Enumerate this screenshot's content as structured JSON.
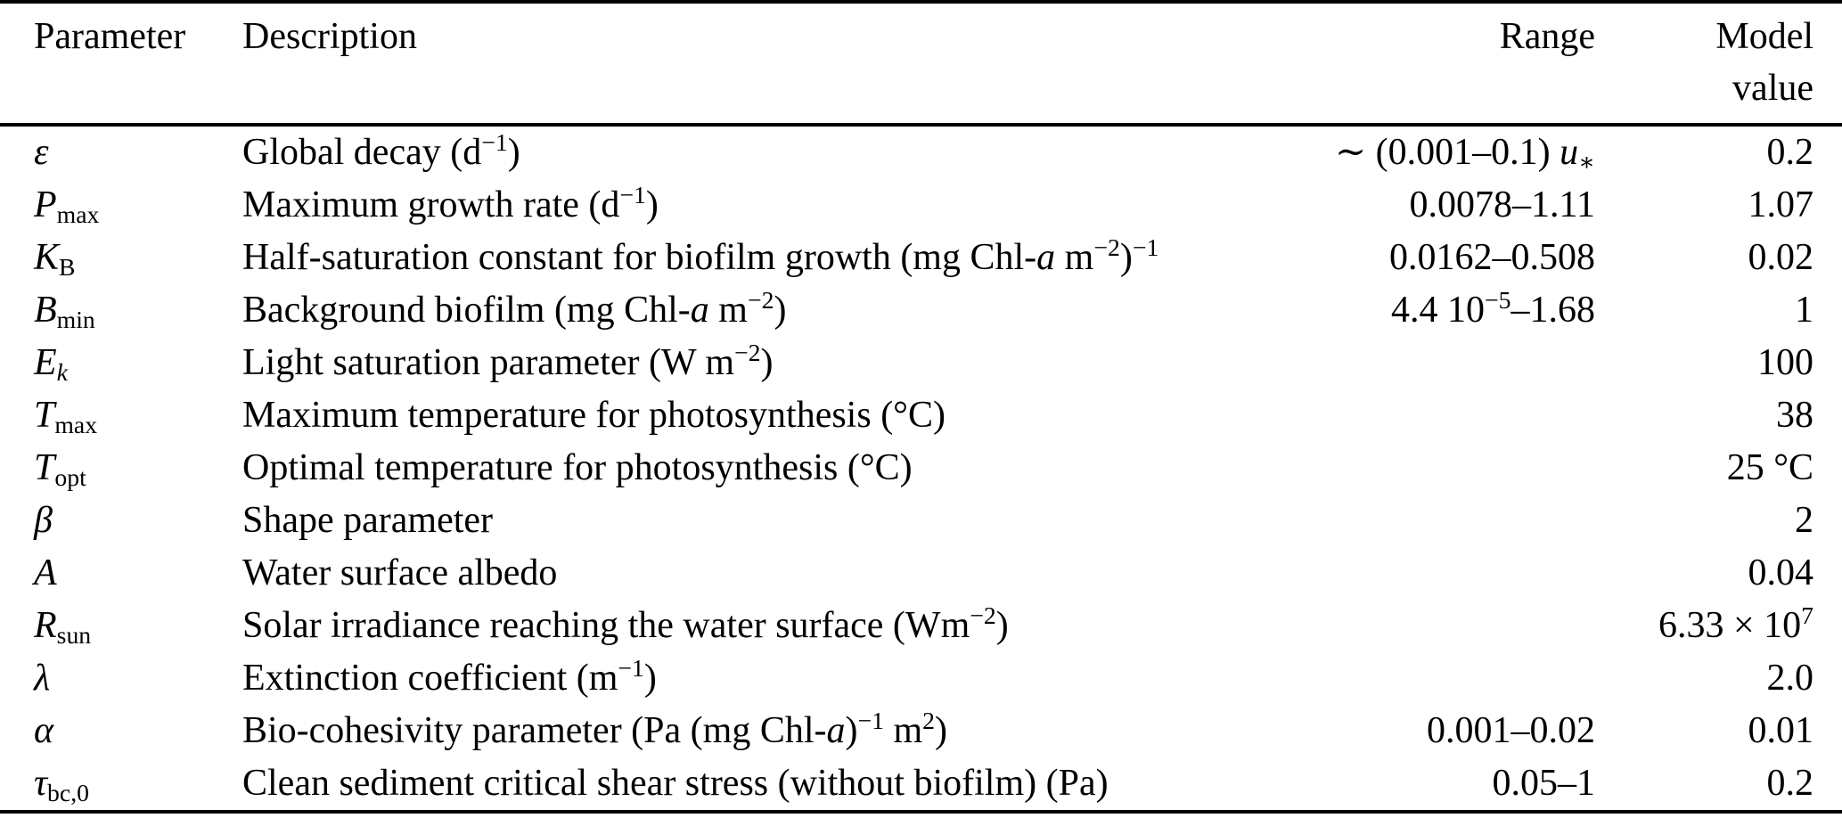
{
  "colors": {
    "background": "#ffffff",
    "text": "#000000",
    "rule": "#000000"
  },
  "table": {
    "columns": [
      "Parameter",
      "Description",
      "Range",
      "Model value"
    ],
    "rows": [
      {
        "param": [
          {
            "t": "ε",
            "i": true
          }
        ],
        "desc": [
          {
            "t": "Global decay (d"
          },
          {
            "t": "−1",
            "pos": "sup"
          },
          {
            "t": ")"
          }
        ],
        "range": [
          {
            "t": "∼ (0.001–0.1) "
          },
          {
            "t": "u",
            "i": true
          },
          {
            "t": "∗",
            "pos": "sub"
          }
        ],
        "model": [
          {
            "t": "0.2"
          }
        ]
      },
      {
        "param": [
          {
            "t": "P",
            "i": true
          },
          {
            "t": "max",
            "pos": "sub"
          }
        ],
        "desc": [
          {
            "t": "Maximum growth rate (d"
          },
          {
            "t": "−1",
            "pos": "sup"
          },
          {
            "t": ")"
          }
        ],
        "range": [
          {
            "t": "0.0078–1.11"
          }
        ],
        "model": [
          {
            "t": "1.07"
          }
        ]
      },
      {
        "param": [
          {
            "t": "K",
            "i": true
          },
          {
            "t": "B",
            "pos": "sub"
          }
        ],
        "desc": [
          {
            "t": "Half-saturation constant for biofilm growth (mg Chl-"
          },
          {
            "t": "a",
            "i": true
          },
          {
            "t": " m"
          },
          {
            "t": "−2",
            "pos": "sup"
          },
          {
            "t": ")"
          },
          {
            "t": "−1",
            "pos": "sup"
          }
        ],
        "range": [
          {
            "t": "0.0162–0.508"
          }
        ],
        "model": [
          {
            "t": "0.02"
          }
        ]
      },
      {
        "param": [
          {
            "t": "B",
            "i": true
          },
          {
            "t": "min",
            "pos": "sub"
          }
        ],
        "desc": [
          {
            "t": "Background biofilm (mg Chl-"
          },
          {
            "t": "a",
            "i": true
          },
          {
            "t": " m"
          },
          {
            "t": "−2",
            "pos": "sup"
          },
          {
            "t": ")"
          }
        ],
        "range": [
          {
            "t": "4.4 10"
          },
          {
            "t": "−5",
            "pos": "sup"
          },
          {
            "t": "–1.68"
          }
        ],
        "model": [
          {
            "t": "1"
          }
        ]
      },
      {
        "param": [
          {
            "t": "E",
            "i": true
          },
          {
            "t": "k",
            "pos": "sub",
            "i": true
          }
        ],
        "desc": [
          {
            "t": "Light saturation parameter (W m"
          },
          {
            "t": "−2",
            "pos": "sup"
          },
          {
            "t": ")"
          }
        ],
        "range": [],
        "model": [
          {
            "t": "100"
          }
        ]
      },
      {
        "param": [
          {
            "t": "T",
            "i": true
          },
          {
            "t": "max",
            "pos": "sub"
          }
        ],
        "desc": [
          {
            "t": "Maximum temperature for photosynthesis (°C)"
          }
        ],
        "range": [],
        "model": [
          {
            "t": "38"
          }
        ]
      },
      {
        "param": [
          {
            "t": "T",
            "i": true
          },
          {
            "t": "opt",
            "pos": "sub"
          }
        ],
        "desc": [
          {
            "t": "Optimal temperature for photosynthesis (°C)"
          }
        ],
        "range": [],
        "model": [
          {
            "t": "25 °C"
          }
        ]
      },
      {
        "param": [
          {
            "t": "β",
            "i": true
          }
        ],
        "desc": [
          {
            "t": "Shape parameter"
          }
        ],
        "range": [],
        "model": [
          {
            "t": "2"
          }
        ]
      },
      {
        "param": [
          {
            "t": "A",
            "i": true
          }
        ],
        "desc": [
          {
            "t": "Water surface albedo"
          }
        ],
        "range": [],
        "model": [
          {
            "t": "0.04"
          }
        ]
      },
      {
        "param": [
          {
            "t": "R",
            "i": true
          },
          {
            "t": "sun",
            "pos": "sub"
          }
        ],
        "desc": [
          {
            "t": "Solar irradiance reaching the water surface (Wm"
          },
          {
            "t": "−2",
            "pos": "sup"
          },
          {
            "t": ")"
          }
        ],
        "range": [],
        "model": [
          {
            "t": "6.33 × 10"
          },
          {
            "t": "7",
            "pos": "sup"
          }
        ]
      },
      {
        "param": [
          {
            "t": "λ",
            "i": true
          }
        ],
        "desc": [
          {
            "t": "Extinction coefficient (m"
          },
          {
            "t": "−1",
            "pos": "sup"
          },
          {
            "t": ")"
          }
        ],
        "range": [],
        "model": [
          {
            "t": "2.0"
          }
        ]
      },
      {
        "param": [
          {
            "t": "α",
            "i": true
          }
        ],
        "desc": [
          {
            "t": "Bio-cohesivity parameter (Pa (mg Chl-"
          },
          {
            "t": "a",
            "i": true
          },
          {
            "t": ")"
          },
          {
            "t": "−1",
            "pos": "sup"
          },
          {
            "t": " m"
          },
          {
            "t": "2",
            "pos": "sup"
          },
          {
            "t": ")"
          }
        ],
        "range": [
          {
            "t": "0.001–0.02"
          }
        ],
        "model": [
          {
            "t": "0.01"
          }
        ]
      },
      {
        "param": [
          {
            "t": "τ",
            "i": true
          },
          {
            "t": "bc,0",
            "pos": "sub"
          }
        ],
        "desc": [
          {
            "t": "Clean sediment critical shear stress (without biofilm) (Pa)"
          }
        ],
        "range": [
          {
            "t": "0.05–1"
          }
        ],
        "model": [
          {
            "t": "0.2"
          }
        ]
      }
    ]
  }
}
